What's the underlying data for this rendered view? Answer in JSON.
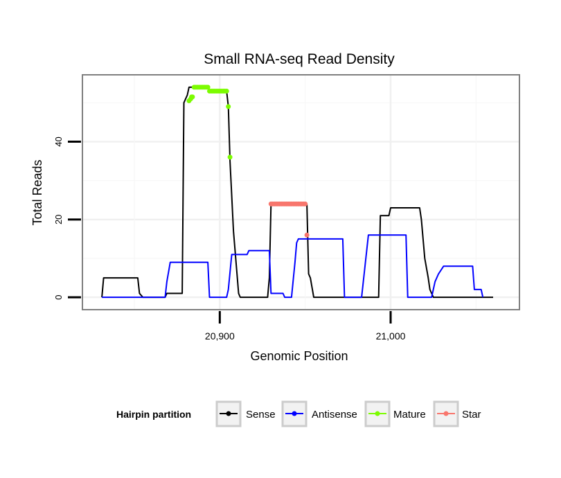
{
  "chart_data": {
    "type": "line",
    "title": "Small RNA-seq Read Density",
    "xlabel": "Genomic Position",
    "ylabel": "Total Reads",
    "xlim": [
      20820,
      21075
    ],
    "ylim": [
      -3,
      57
    ],
    "x_ticks": [
      20900,
      21000
    ],
    "x_tick_labels": [
      "20,900",
      "21,000"
    ],
    "y_ticks": [
      0,
      20,
      40
    ],
    "y_tick_labels": [
      "0",
      "20",
      "40"
    ],
    "grid": true,
    "legend": {
      "title": "Hairpin partition",
      "position": "bottom",
      "entries": [
        "Sense",
        "Antisense",
        "Mature",
        "Star"
      ]
    },
    "series": [
      {
        "name": "Sense",
        "color": "#000000",
        "style": "line",
        "points": [
          [
            20831,
            0
          ],
          [
            20832,
            5
          ],
          [
            20852,
            5
          ],
          [
            20853,
            1
          ],
          [
            20855,
            0
          ],
          [
            20868,
            0
          ],
          [
            20869,
            1
          ],
          [
            20878,
            1
          ],
          [
            20879,
            50
          ],
          [
            20880,
            51
          ],
          [
            20881,
            52
          ],
          [
            20882,
            54
          ],
          [
            20893,
            54
          ],
          [
            20894,
            53
          ],
          [
            20904,
            53
          ],
          [
            20905,
            49
          ],
          [
            20906,
            35
          ],
          [
            20908,
            17
          ],
          [
            20911,
            1
          ],
          [
            20912,
            0
          ],
          [
            20928,
            0
          ],
          [
            20929,
            5
          ],
          [
            20930,
            24
          ],
          [
            20951,
            24
          ],
          [
            20952,
            6
          ],
          [
            20953,
            5
          ],
          [
            20955,
            0
          ],
          [
            20979,
            0
          ],
          [
            20980,
            0
          ],
          [
            20981,
            0
          ],
          [
            20993,
            0
          ],
          [
            20994,
            21
          ],
          [
            20999,
            21
          ],
          [
            21000,
            23
          ],
          [
            21017,
            23
          ],
          [
            21018,
            20
          ],
          [
            21020,
            10
          ],
          [
            21022,
            5
          ],
          [
            21023,
            2
          ],
          [
            21024,
            1
          ],
          [
            21025,
            0
          ],
          [
            21060,
            0
          ]
        ]
      },
      {
        "name": "Antisense",
        "color": "#0000ff",
        "style": "line",
        "points": [
          [
            20831,
            0
          ],
          [
            20868,
            0
          ],
          [
            20869,
            4
          ],
          [
            20871,
            9
          ],
          [
            20893,
            9
          ],
          [
            20894,
            0
          ],
          [
            20904,
            0
          ],
          [
            20905,
            2
          ],
          [
            20907,
            11
          ],
          [
            20916,
            11
          ],
          [
            20917,
            12
          ],
          [
            20929,
            12
          ],
          [
            20930,
            1
          ],
          [
            20937,
            1
          ],
          [
            20938,
            0
          ],
          [
            20942,
            0
          ],
          [
            20944,
            9
          ],
          [
            20945,
            14
          ],
          [
            20946,
            15
          ],
          [
            20972,
            15
          ],
          [
            20973,
            0
          ],
          [
            20983,
            0
          ],
          [
            20985,
            8
          ],
          [
            20987,
            16
          ],
          [
            21009,
            16
          ],
          [
            21010,
            0
          ],
          [
            21024,
            0
          ],
          [
            21026,
            4
          ],
          [
            21028,
            6
          ],
          [
            21031,
            8
          ],
          [
            21048,
            8
          ],
          [
            21049,
            2
          ],
          [
            21053,
            2
          ],
          [
            21054,
            0
          ]
        ]
      },
      {
        "name": "Mature",
        "color": "#7cfc00",
        "style": "points",
        "points": [
          [
            20882,
            50.5
          ],
          [
            20883,
            51
          ],
          [
            20883.5,
            51.5
          ],
          [
            20884,
            51.5
          ],
          [
            20885,
            54
          ],
          [
            20886,
            54
          ],
          [
            20887,
            54
          ],
          [
            20888,
            54
          ],
          [
            20889,
            54
          ],
          [
            20890,
            54
          ],
          [
            20891,
            54
          ],
          [
            20892,
            54
          ],
          [
            20893,
            54
          ],
          [
            20894,
            53
          ],
          [
            20895,
            53
          ],
          [
            20896,
            53
          ],
          [
            20897,
            53
          ],
          [
            20898,
            53
          ],
          [
            20899,
            53
          ],
          [
            20900,
            53
          ],
          [
            20901,
            53
          ],
          [
            20902,
            53
          ],
          [
            20903,
            53
          ],
          [
            20904,
            53
          ],
          [
            20905,
            49
          ],
          [
            20906,
            36
          ]
        ]
      },
      {
        "name": "Star",
        "color": "#f8766d",
        "style": "points",
        "points": [
          [
            20930,
            24
          ],
          [
            20931,
            24
          ],
          [
            20932,
            24
          ],
          [
            20933,
            24
          ],
          [
            20934,
            24
          ],
          [
            20935,
            24
          ],
          [
            20936,
            24
          ],
          [
            20937,
            24
          ],
          [
            20938,
            24
          ],
          [
            20939,
            24
          ],
          [
            20940,
            24
          ],
          [
            20941,
            24
          ],
          [
            20942,
            24
          ],
          [
            20943,
            24
          ],
          [
            20944,
            24
          ],
          [
            20945,
            24
          ],
          [
            20946,
            24
          ],
          [
            20947,
            24
          ],
          [
            20948,
            24
          ],
          [
            20949,
            24
          ],
          [
            20950,
            24
          ],
          [
            20951,
            16
          ]
        ]
      }
    ]
  }
}
